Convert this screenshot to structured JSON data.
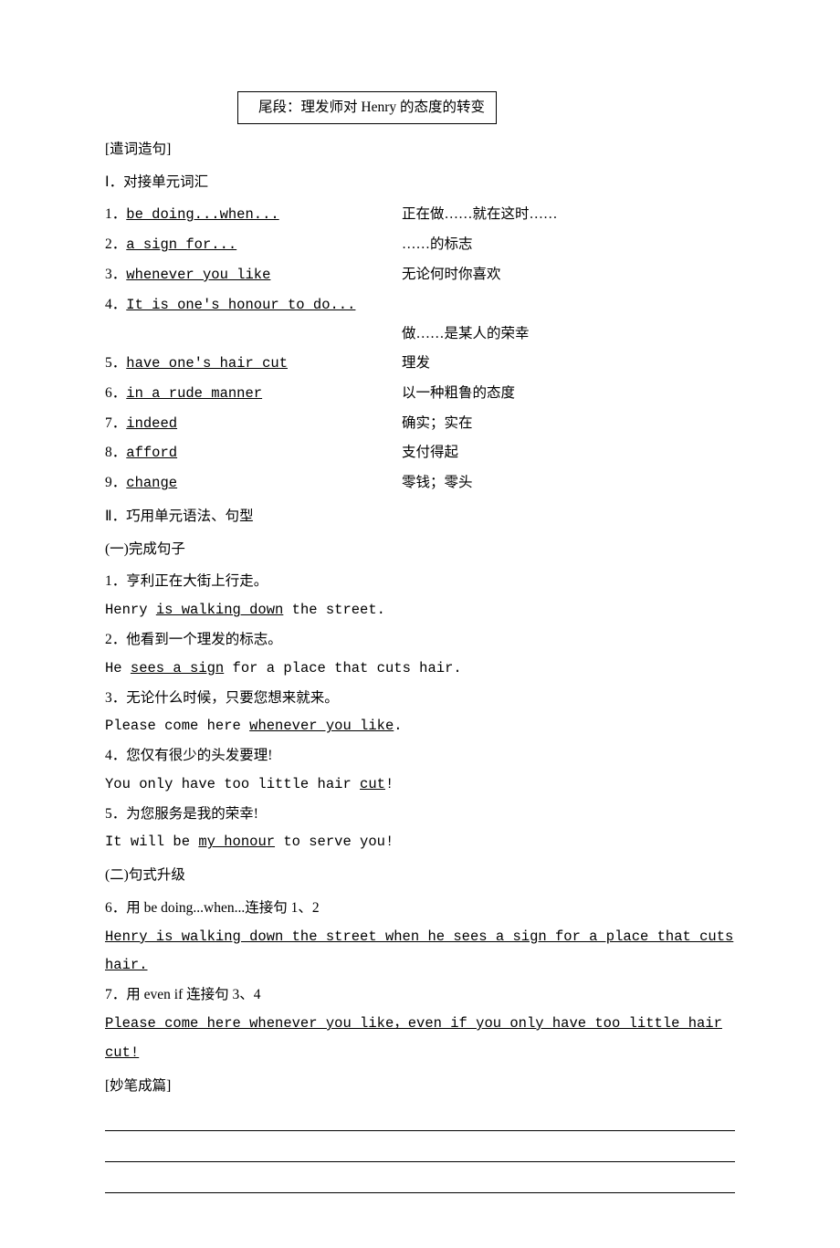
{
  "box_text": "尾段：理发师对 Henry 的态度的转变",
  "sections": {
    "phrasing": "[遣词造句]",
    "vocab_header": "Ⅰ．对接单元词汇",
    "grammar_header": "Ⅱ．巧用单元语法、句型",
    "complete_sentences": "(一)完成句子",
    "sentence_upgrade": "(二)句式升级",
    "finalize": "[妙笔成篇]"
  },
  "vocab": [
    {
      "num": "1．",
      "en": "be doing...when...",
      "zh": "正在做……就在这时……"
    },
    {
      "num": "2．",
      "en": "a sign for...",
      "zh": "……的标志"
    },
    {
      "num": "3．",
      "en": "whenever you like",
      "zh": "无论何时你喜欢"
    },
    {
      "num": "4．",
      "en": "It is one's honour to do...",
      "zh": ""
    },
    {
      "num": "",
      "en": "",
      "zh": "做……是某人的荣幸"
    },
    {
      "num": "5．",
      "en": "have one's hair cut",
      "zh": "理发"
    },
    {
      "num": "6．",
      "en": "in a rude manner",
      "zh": "以一种粗鲁的态度"
    },
    {
      "num": "7．",
      "en": "indeed",
      "zh": "确实；实在"
    },
    {
      "num": "8．",
      "en": "afford",
      "zh": "支付得起"
    },
    {
      "num": "9．",
      "en": "change",
      "zh": "零钱；零头"
    }
  ],
  "items": {
    "q1_zh": "1．亨利正在大街上行走。",
    "q1_en_a": "Henry ",
    "q1_en_u": "is walking down",
    "q1_en_b": " the street.",
    "q2_zh": "2．他看到一个理发的标志。",
    "q2_en_a": "He ",
    "q2_en_u": "sees a sign",
    "q2_en_b": " for a place that cuts hair.",
    "q3_zh": "3．无论什么时候，只要您想来就来。",
    "q3_en_a": "Please come here ",
    "q3_en_u": "whenever you like",
    "q3_en_b": ".",
    "q4_zh": "4．您仅有很少的头发要理!",
    "q4_en_a": "You only have too little hair ",
    "q4_en_u": "cut",
    "q4_en_b": "!",
    "q5_zh": "5．为您服务是我的荣幸!",
    "q5_en_a": "It will be ",
    "q5_en_u": "my honour",
    "q5_en_b": " to serve you!",
    "q6_zh": "6．用 be doing...when...连接句 1、2",
    "q6_ans": "Henry is walking down the street when he sees a sign for a place that cuts hair.",
    "q7_zh": "7．用 even if 连接句 3、4",
    "q7_ans": "Please come here whenever you like，even if you only have too little hair cut!"
  }
}
